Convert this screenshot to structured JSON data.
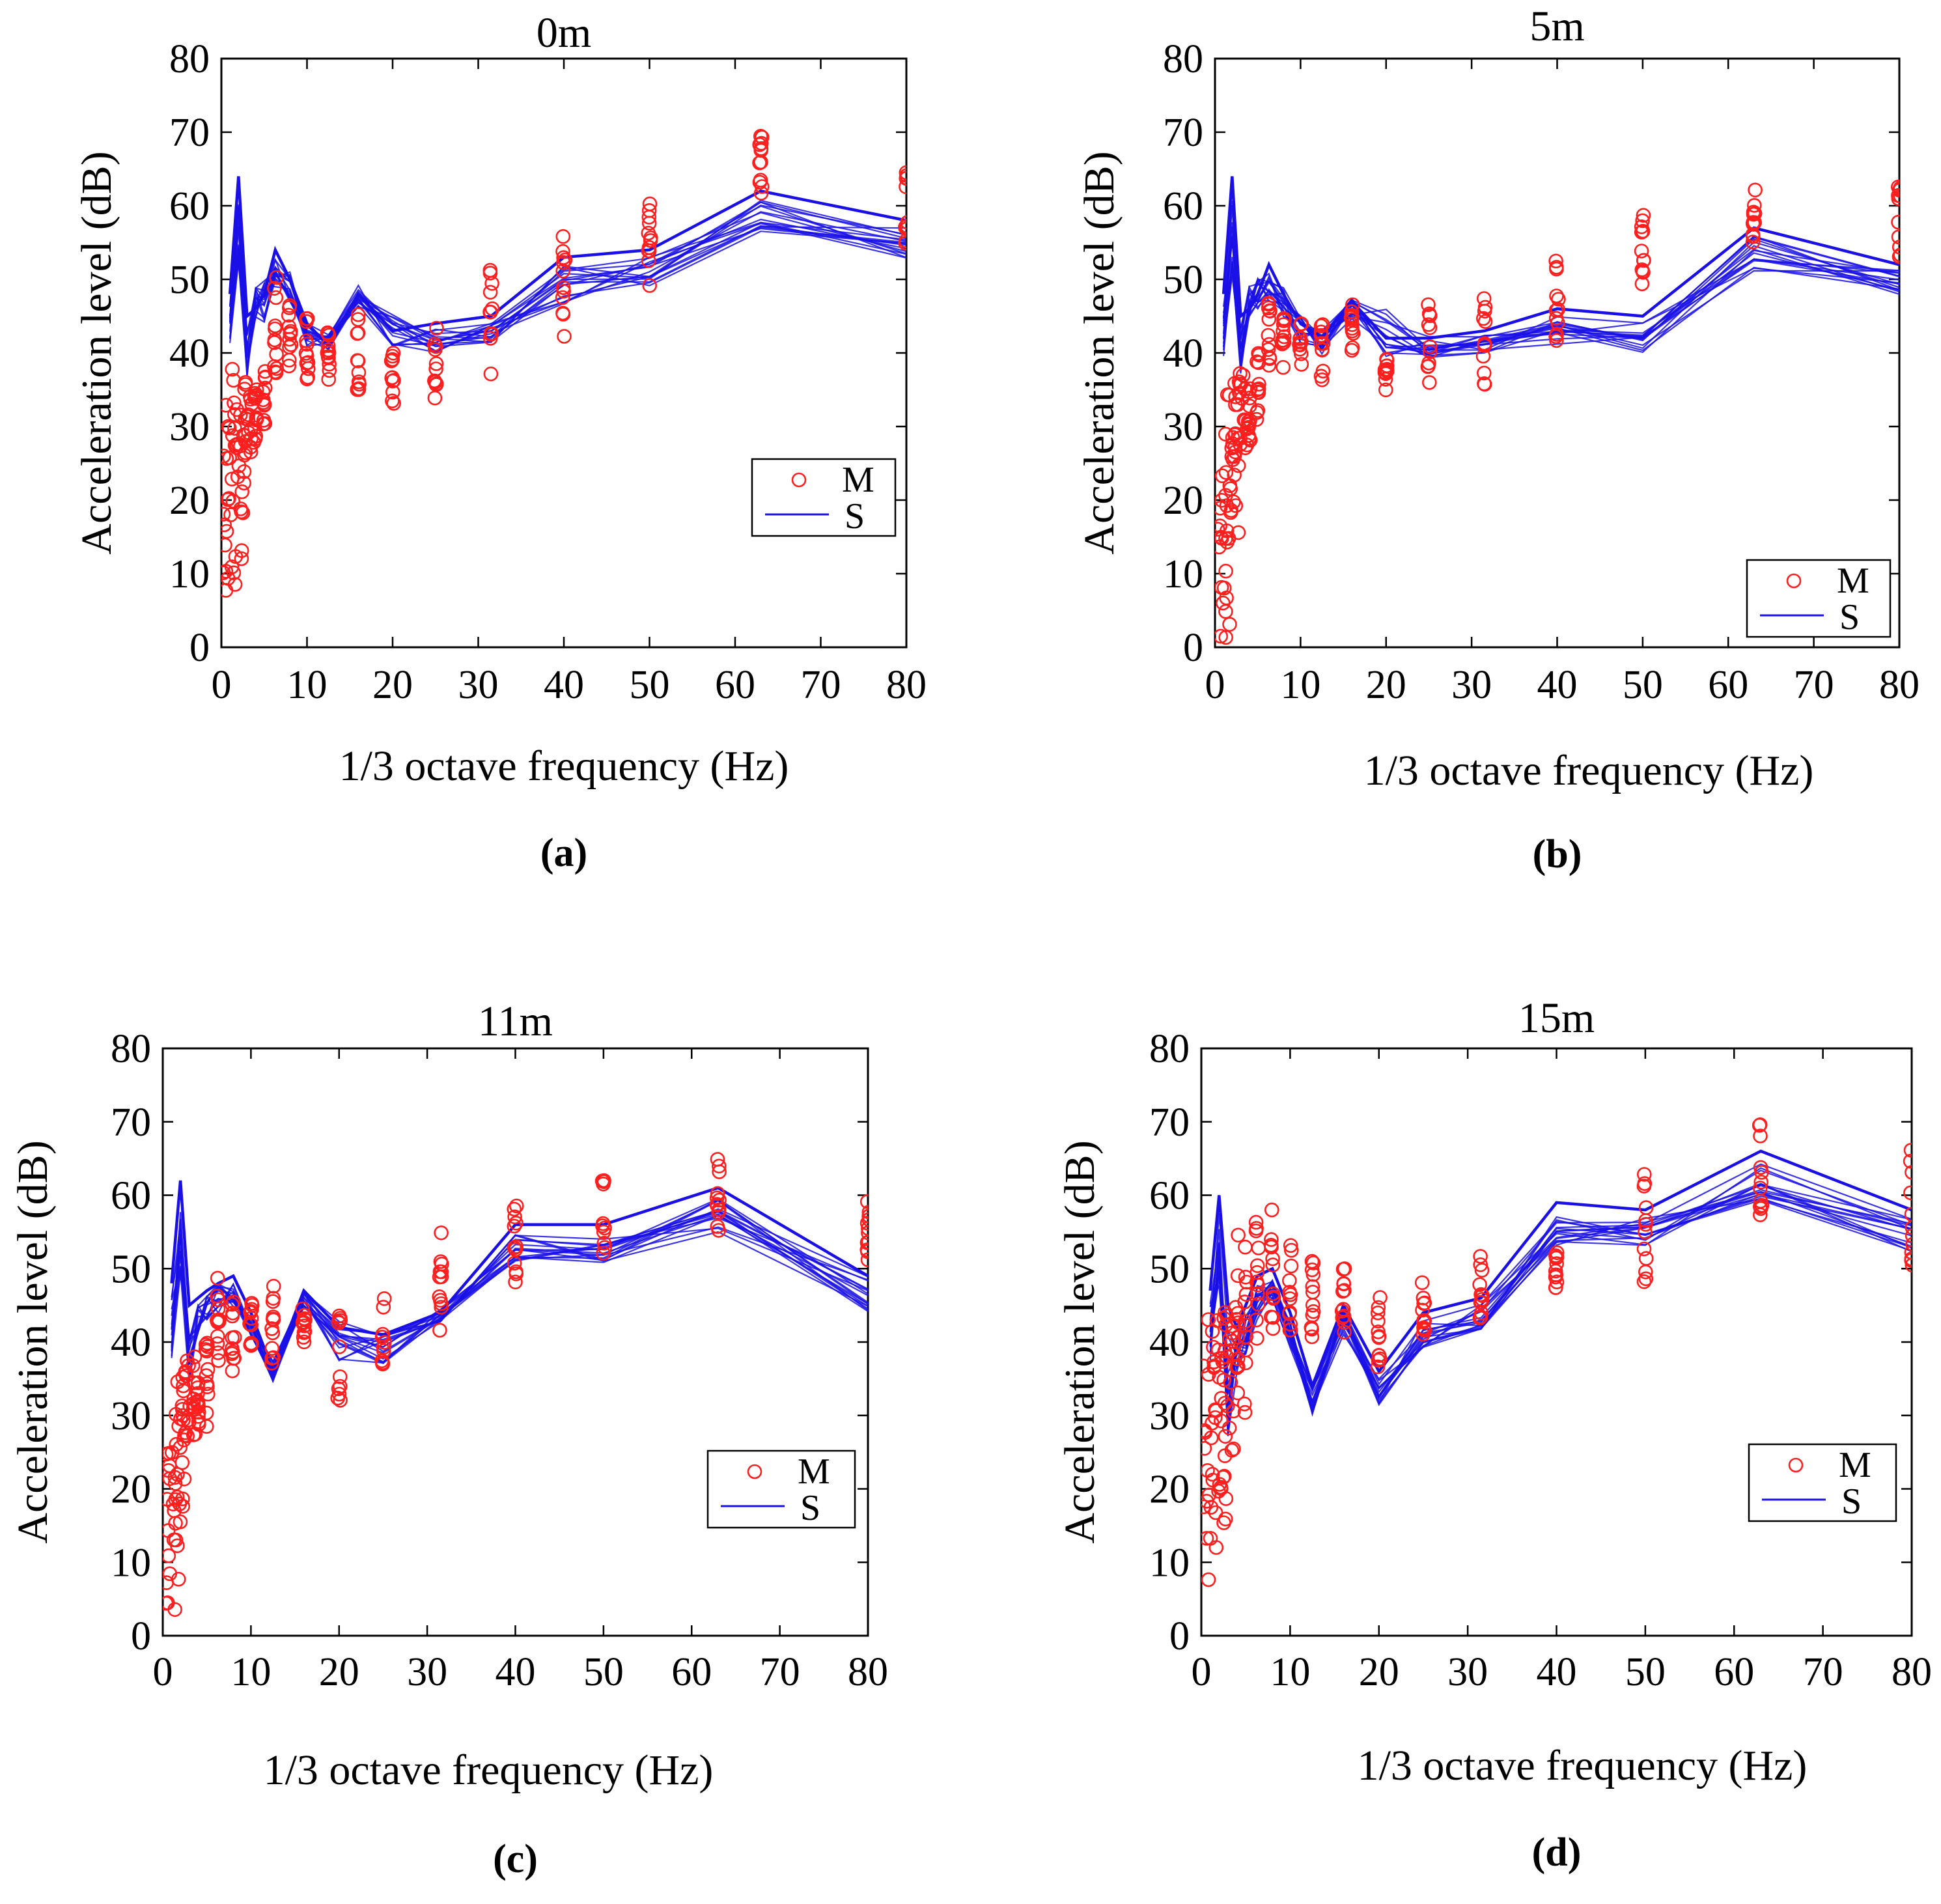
{
  "colors": {
    "measured": "#ff1f1f",
    "simulated": "#1a10e6",
    "axis": "#000000"
  },
  "legend": {
    "measured_label": "M",
    "simulated_label": "S"
  },
  "chart_data": [
    {
      "type": "scatter+line",
      "panel_label": "(a)",
      "panel_letter": "a",
      "title": "0m",
      "xlabel": "1/3 octave frequency (Hz)",
      "ylabel": "Acceleration level (dB)",
      "xlim": [
        0,
        80
      ],
      "ylim": [
        0,
        80
      ],
      "xticks": [
        0,
        10,
        20,
        30,
        40,
        50,
        60,
        70,
        80
      ],
      "yticks": [
        0,
        10,
        20,
        30,
        40,
        50,
        60,
        70,
        80
      ],
      "legend_position": "lower-right",
      "freq": [
        1,
        2,
        3,
        4,
        5,
        6.3,
        8,
        10,
        12.5,
        16,
        20,
        25,
        31.5,
        40,
        50,
        63,
        80
      ],
      "measured": [
        [
          7,
          33
        ],
        [
          12,
          38
        ],
        [
          26,
          36
        ],
        [
          28,
          35
        ],
        [
          30,
          38
        ],
        [
          36,
          52
        ],
        [
          37,
          47
        ],
        [
          36,
          45
        ],
        [
          34,
          43
        ],
        [
          35,
          47
        ],
        [
          33,
          40
        ],
        [
          33,
          44
        ],
        [
          37,
          52
        ],
        [
          42,
          56
        ],
        [
          49,
          63
        ],
        [
          59,
          71
        ],
        [
          54,
          65
        ]
      ],
      "sim_main": [
        [
          40,
          48
        ],
        [
          50,
          63
        ],
        [
          35,
          45
        ],
        [
          43,
          50
        ],
        [
          43,
          51
        ],
        [
          48,
          54
        ],
        [
          46,
          52
        ],
        [
          40,
          45
        ],
        [
          40,
          43
        ],
        [
          45,
          50
        ],
        [
          39,
          47
        ],
        [
          39,
          44
        ],
        [
          40,
          45
        ],
        [
          45,
          53
        ],
        [
          48,
          54
        ],
        [
          55,
          62
        ],
        [
          52,
          58
        ]
      ],
      "sim_outlier": [
        48,
        64,
        45,
        46,
        48,
        54,
        50,
        44,
        41,
        48,
        43,
        44,
        45,
        53,
        54,
        62,
        58
      ]
    },
    {
      "type": "scatter+line",
      "panel_label": "(b)",
      "panel_letter": "b",
      "title": "5m",
      "xlabel": "1/3 octave frequency (Hz)",
      "ylabel": "Acceleration level (dB)",
      "xlim": [
        0,
        80
      ],
      "ylim": [
        0,
        80
      ],
      "xticks": [
        0,
        10,
        20,
        30,
        40,
        50,
        60,
        70,
        80
      ],
      "yticks": [
        0,
        10,
        20,
        30,
        40,
        50,
        60,
        70,
        80
      ],
      "legend_position": "lower-right",
      "freq": [
        1,
        2,
        3,
        4,
        5,
        6.3,
        8,
        10,
        12.5,
        16,
        20,
        25,
        31.5,
        40,
        50,
        63,
        80
      ],
      "measured": [
        [
          1,
          25
        ],
        [
          14,
          35
        ],
        [
          26,
          38
        ],
        [
          28,
          36
        ],
        [
          30,
          40
        ],
        [
          38,
          48
        ],
        [
          38,
          45
        ],
        [
          38,
          44
        ],
        [
          36,
          44
        ],
        [
          39,
          47
        ],
        [
          34,
          40
        ],
        [
          35,
          47
        ],
        [
          34,
          48
        ],
        [
          40,
          53
        ],
        [
          49,
          59
        ],
        [
          55,
          63
        ],
        [
          52,
          63
        ]
      ],
      "sim_main": [
        [
          38,
          48
        ],
        [
          48,
          63
        ],
        [
          35,
          45
        ],
        [
          44,
          50
        ],
        [
          45,
          51
        ],
        [
          46,
          52
        ],
        [
          44,
          50
        ],
        [
          40,
          46
        ],
        [
          39,
          44
        ],
        [
          44,
          48
        ],
        [
          38,
          48
        ],
        [
          38,
          43
        ],
        [
          39,
          43
        ],
        [
          40,
          46
        ],
        [
          39,
          45
        ],
        [
          50,
          57
        ],
        [
          47,
          52
        ]
      ],
      "sim_outlier": [
        48,
        64,
        45,
        46,
        48,
        52,
        48,
        44,
        42,
        47,
        42,
        42,
        43,
        46,
        45,
        57,
        52
      ]
    },
    {
      "type": "scatter+line",
      "panel_label": "(c)",
      "panel_letter": "c",
      "title": "11m",
      "xlabel": "1/3 octave frequency (Hz)",
      "ylabel": "Acceleration level (dB)",
      "xlim": [
        0,
        80
      ],
      "ylim": [
        0,
        80
      ],
      "xticks": [
        0,
        10,
        20,
        30,
        40,
        50,
        60,
        70,
        80
      ],
      "yticks": [
        0,
        10,
        20,
        30,
        40,
        50,
        60,
        70,
        80
      ],
      "legend_position": "lower-right",
      "freq": [
        1,
        2,
        3,
        4,
        5,
        6.3,
        8,
        10,
        12.5,
        16,
        20,
        25,
        31.5,
        40,
        50,
        63,
        80
      ],
      "measured": [
        [
          3,
          25
        ],
        [
          15,
          35
        ],
        [
          27,
          38
        ],
        [
          27,
          37
        ],
        [
          28,
          40
        ],
        [
          37,
          50
        ],
        [
          36,
          47
        ],
        [
          37,
          46
        ],
        [
          37,
          48
        ],
        [
          39,
          46
        ],
        [
          32,
          44
        ],
        [
          35,
          46
        ],
        [
          41,
          56
        ],
        [
          48,
          60
        ],
        [
          50,
          62
        ],
        [
          55,
          65
        ],
        [
          50,
          60
        ]
      ],
      "sim_main": [
        [
          36,
          48
        ],
        [
          46,
          62
        ],
        [
          30,
          45
        ],
        [
          40,
          46
        ],
        [
          42,
          47
        ],
        [
          43,
          49
        ],
        [
          44,
          49
        ],
        [
          40,
          44
        ],
        [
          34,
          38
        ],
        [
          44,
          48
        ],
        [
          36,
          44
        ],
        [
          36,
          43
        ],
        [
          42,
          45
        ],
        [
          50,
          56
        ],
        [
          50,
          55
        ],
        [
          53,
          61
        ],
        [
          43,
          50
        ]
      ],
      "sim_outlier": [
        48,
        62,
        45,
        46,
        47,
        48,
        49,
        44,
        36,
        47,
        42,
        41,
        44,
        56,
        56,
        61,
        49
      ]
    },
    {
      "type": "scatter+line",
      "panel_label": "(d)",
      "panel_letter": "d",
      "title": "15m",
      "xlabel": "1/3 octave frequency (Hz)",
      "ylabel": "Acceleration level (dB)",
      "xlim": [
        0,
        80
      ],
      "ylim": [
        0,
        80
      ],
      "xticks": [
        0,
        10,
        20,
        30,
        40,
        50,
        60,
        70,
        80
      ],
      "yticks": [
        0,
        10,
        20,
        30,
        40,
        50,
        60,
        70,
        80
      ],
      "legend_position": "lower-right",
      "freq": [
        1,
        2,
        3,
        4,
        5,
        6.3,
        8,
        10,
        12.5,
        16,
        20,
        25,
        31.5,
        40,
        50,
        63,
        80
      ],
      "measured": [
        [
          6,
          48
        ],
        [
          15,
          44
        ],
        [
          24,
          45
        ],
        [
          29,
          55
        ],
        [
          30,
          55
        ],
        [
          39,
          57
        ],
        [
          39,
          58
        ],
        [
          40,
          54
        ],
        [
          40,
          51
        ],
        [
          40,
          50
        ],
        [
          36,
          48
        ],
        [
          41,
          49
        ],
        [
          42,
          52
        ],
        [
          47,
          56
        ],
        [
          48,
          64
        ],
        [
          56,
          70
        ],
        [
          50,
          67
        ]
      ],
      "sim_main": [
        [
          35,
          47
        ],
        [
          45,
          60
        ],
        [
          24,
          45
        ],
        [
          34,
          42
        ],
        [
          37,
          45
        ],
        [
          42,
          49
        ],
        [
          45,
          50
        ],
        [
          38,
          44
        ],
        [
          29,
          35
        ],
        [
          40,
          46
        ],
        [
          30,
          36
        ],
        [
          38,
          44
        ],
        [
          41,
          46
        ],
        [
          52,
          58
        ],
        [
          52,
          58
        ],
        [
          58,
          66
        ],
        [
          51,
          58
        ]
      ],
      "sim_outlier": [
        47,
        60,
        45,
        42,
        45,
        49,
        50,
        44,
        34,
        45,
        36,
        44,
        46,
        59,
        58,
        66,
        58
      ]
    }
  ]
}
